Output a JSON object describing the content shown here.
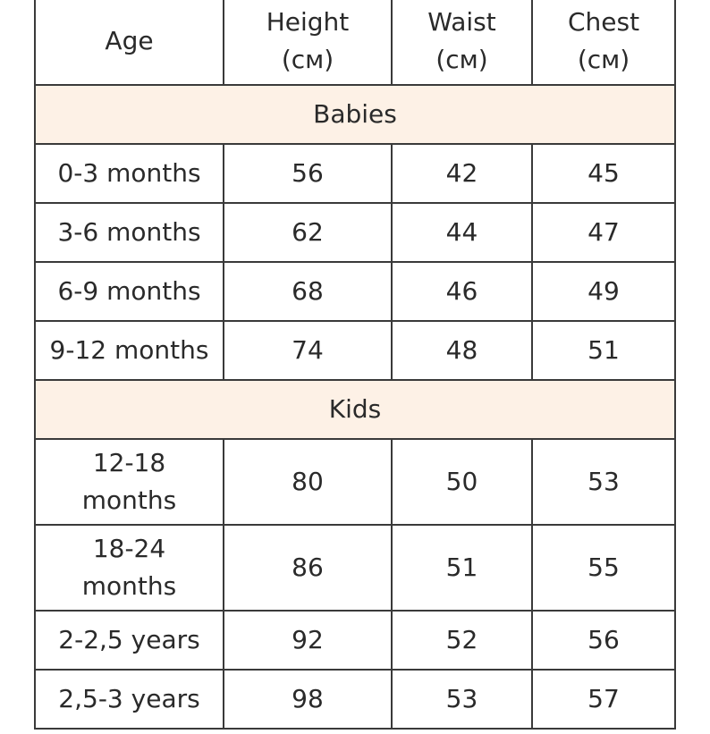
{
  "headers": {
    "age": "Age",
    "height_line1": "Height",
    "height_line2": "(см)",
    "waist_line1": "Waist",
    "waist_line2": "(см)",
    "chest_line1": "Chest",
    "chest_line2": "(см)"
  },
  "sections": [
    {
      "title": "Babies",
      "rows": [
        {
          "age": "0-3 months",
          "height": "56",
          "waist": "42",
          "chest": "45"
        },
        {
          "age": "3-6 months",
          "height": "62",
          "waist": "44",
          "chest": "47"
        },
        {
          "age": "6-9 months",
          "height": "68",
          "waist": "46",
          "chest": "49"
        },
        {
          "age": "9-12 months",
          "height": "74",
          "waist": "48",
          "chest": "51"
        }
      ]
    },
    {
      "title": "Kids",
      "rows": [
        {
          "age_line1": "12-18",
          "age_line2": "months",
          "height": "80",
          "waist": "50",
          "chest": "53"
        },
        {
          "age_line1": "18-24",
          "age_line2": "months",
          "height": "86",
          "waist": "51",
          "chest": "55"
        },
        {
          "age": "2-2,5 years",
          "height": "92",
          "waist": "52",
          "chest": "56"
        },
        {
          "age": "2,5-3 years",
          "height": "98",
          "waist": "53",
          "chest": "57"
        }
      ]
    }
  ],
  "colors": {
    "section_background": "#fdf1e6",
    "border": "#3a3a3a",
    "text": "#2a2a2a"
  }
}
